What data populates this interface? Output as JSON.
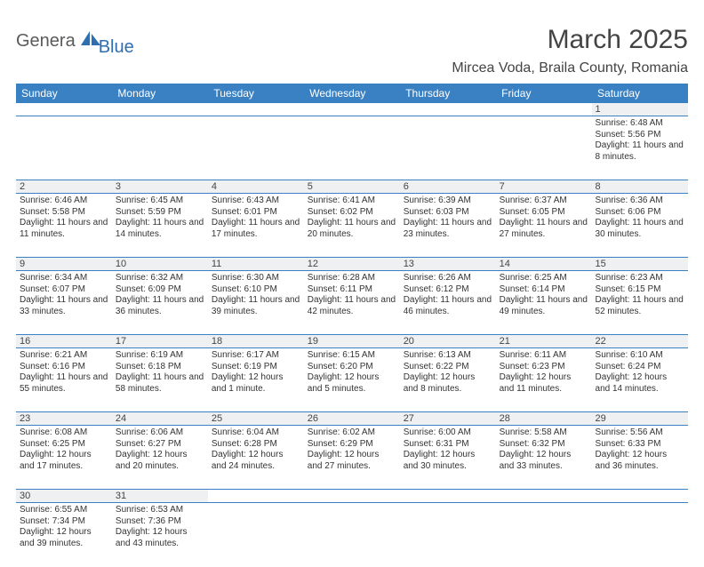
{
  "logo": {
    "part1": "Genera",
    "part2": "Blue"
  },
  "title": "March 2025",
  "location": "Mircea Voda, Braila County, Romania",
  "colors": {
    "header_bg": "#3a81c4",
    "header_text": "#ffffff",
    "daynum_bg": "#eef0f2",
    "border": "#3a81c4",
    "text": "#333333",
    "logo_gray": "#5a5a5a",
    "logo_blue": "#2f6fb0"
  },
  "days": [
    "Sunday",
    "Monday",
    "Tuesday",
    "Wednesday",
    "Thursday",
    "Friday",
    "Saturday"
  ],
  "weeks": [
    {
      "nums": [
        "",
        "",
        "",
        "",
        "",
        "",
        "1"
      ],
      "cells": [
        "",
        "",
        "",
        "",
        "",
        "",
        "Sunrise: 6:48 AM\nSunset: 5:56 PM\nDaylight: 11 hours and 8 minutes."
      ]
    },
    {
      "nums": [
        "2",
        "3",
        "4",
        "5",
        "6",
        "7",
        "8"
      ],
      "cells": [
        "Sunrise: 6:46 AM\nSunset: 5:58 PM\nDaylight: 11 hours and 11 minutes.",
        "Sunrise: 6:45 AM\nSunset: 5:59 PM\nDaylight: 11 hours and 14 minutes.",
        "Sunrise: 6:43 AM\nSunset: 6:01 PM\nDaylight: 11 hours and 17 minutes.",
        "Sunrise: 6:41 AM\nSunset: 6:02 PM\nDaylight: 11 hours and 20 minutes.",
        "Sunrise: 6:39 AM\nSunset: 6:03 PM\nDaylight: 11 hours and 23 minutes.",
        "Sunrise: 6:37 AM\nSunset: 6:05 PM\nDaylight: 11 hours and 27 minutes.",
        "Sunrise: 6:36 AM\nSunset: 6:06 PM\nDaylight: 11 hours and 30 minutes."
      ]
    },
    {
      "nums": [
        "9",
        "10",
        "11",
        "12",
        "13",
        "14",
        "15"
      ],
      "cells": [
        "Sunrise: 6:34 AM\nSunset: 6:07 PM\nDaylight: 11 hours and 33 minutes.",
        "Sunrise: 6:32 AM\nSunset: 6:09 PM\nDaylight: 11 hours and 36 minutes.",
        "Sunrise: 6:30 AM\nSunset: 6:10 PM\nDaylight: 11 hours and 39 minutes.",
        "Sunrise: 6:28 AM\nSunset: 6:11 PM\nDaylight: 11 hours and 42 minutes.",
        "Sunrise: 6:26 AM\nSunset: 6:12 PM\nDaylight: 11 hours and 46 minutes.",
        "Sunrise: 6:25 AM\nSunset: 6:14 PM\nDaylight: 11 hours and 49 minutes.",
        "Sunrise: 6:23 AM\nSunset: 6:15 PM\nDaylight: 11 hours and 52 minutes."
      ]
    },
    {
      "nums": [
        "16",
        "17",
        "18",
        "19",
        "20",
        "21",
        "22"
      ],
      "cells": [
        "Sunrise: 6:21 AM\nSunset: 6:16 PM\nDaylight: 11 hours and 55 minutes.",
        "Sunrise: 6:19 AM\nSunset: 6:18 PM\nDaylight: 11 hours and 58 minutes.",
        "Sunrise: 6:17 AM\nSunset: 6:19 PM\nDaylight: 12 hours and 1 minute.",
        "Sunrise: 6:15 AM\nSunset: 6:20 PM\nDaylight: 12 hours and 5 minutes.",
        "Sunrise: 6:13 AM\nSunset: 6:22 PM\nDaylight: 12 hours and 8 minutes.",
        "Sunrise: 6:11 AM\nSunset: 6:23 PM\nDaylight: 12 hours and 11 minutes.",
        "Sunrise: 6:10 AM\nSunset: 6:24 PM\nDaylight: 12 hours and 14 minutes."
      ]
    },
    {
      "nums": [
        "23",
        "24",
        "25",
        "26",
        "27",
        "28",
        "29"
      ],
      "cells": [
        "Sunrise: 6:08 AM\nSunset: 6:25 PM\nDaylight: 12 hours and 17 minutes.",
        "Sunrise: 6:06 AM\nSunset: 6:27 PM\nDaylight: 12 hours and 20 minutes.",
        "Sunrise: 6:04 AM\nSunset: 6:28 PM\nDaylight: 12 hours and 24 minutes.",
        "Sunrise: 6:02 AM\nSunset: 6:29 PM\nDaylight: 12 hours and 27 minutes.",
        "Sunrise: 6:00 AM\nSunset: 6:31 PM\nDaylight: 12 hours and 30 minutes.",
        "Sunrise: 5:58 AM\nSunset: 6:32 PM\nDaylight: 12 hours and 33 minutes.",
        "Sunrise: 5:56 AM\nSunset: 6:33 PM\nDaylight: 12 hours and 36 minutes."
      ]
    },
    {
      "nums": [
        "30",
        "31",
        "",
        "",
        "",
        "",
        ""
      ],
      "cells": [
        "Sunrise: 6:55 AM\nSunset: 7:34 PM\nDaylight: 12 hours and 39 minutes.",
        "Sunrise: 6:53 AM\nSunset: 7:36 PM\nDaylight: 12 hours and 43 minutes.",
        "",
        "",
        "",
        "",
        ""
      ]
    }
  ]
}
